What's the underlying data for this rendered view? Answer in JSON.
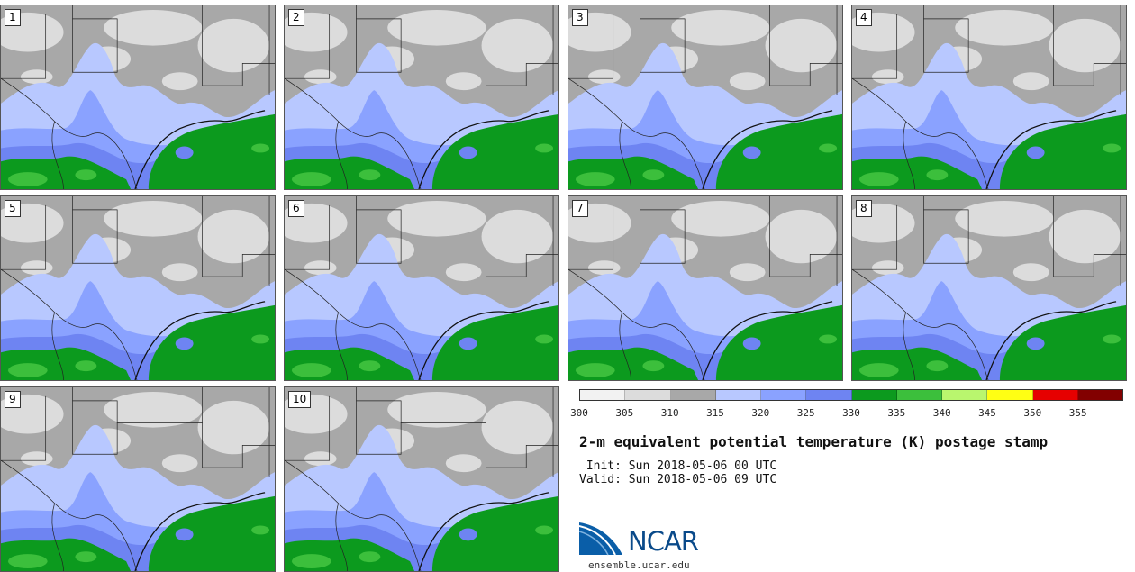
{
  "panels": [
    {
      "label": "1"
    },
    {
      "label": "2"
    },
    {
      "label": "3"
    },
    {
      "label": "4"
    },
    {
      "label": "5"
    },
    {
      "label": "6"
    },
    {
      "label": "7"
    },
    {
      "label": "8"
    },
    {
      "label": "9"
    },
    {
      "label": "10"
    }
  ],
  "colorbar": {
    "colors": [
      "#f2f2f2",
      "#dcdcdc",
      "#a8a8a8",
      "#b8c8ff",
      "#8aa2ff",
      "#6e84f2",
      "#0c9a1e",
      "#3cbf3c",
      "#b9f66e",
      "#ffff14",
      "#e60000",
      "#820000"
    ],
    "ticks": [
      "300",
      "305",
      "310",
      "315",
      "320",
      "325",
      "330",
      "335",
      "340",
      "345",
      "350",
      "355"
    ]
  },
  "title": "2-m equivalent potential temperature (K) postage stamp",
  "init": " Init: Sun 2018-05-06 00 UTC",
  "valid": "Valid: Sun 2018-05-06 09 UTC",
  "logo": {
    "text": "NCAR",
    "url": "ensemble.ucar.edu"
  }
}
